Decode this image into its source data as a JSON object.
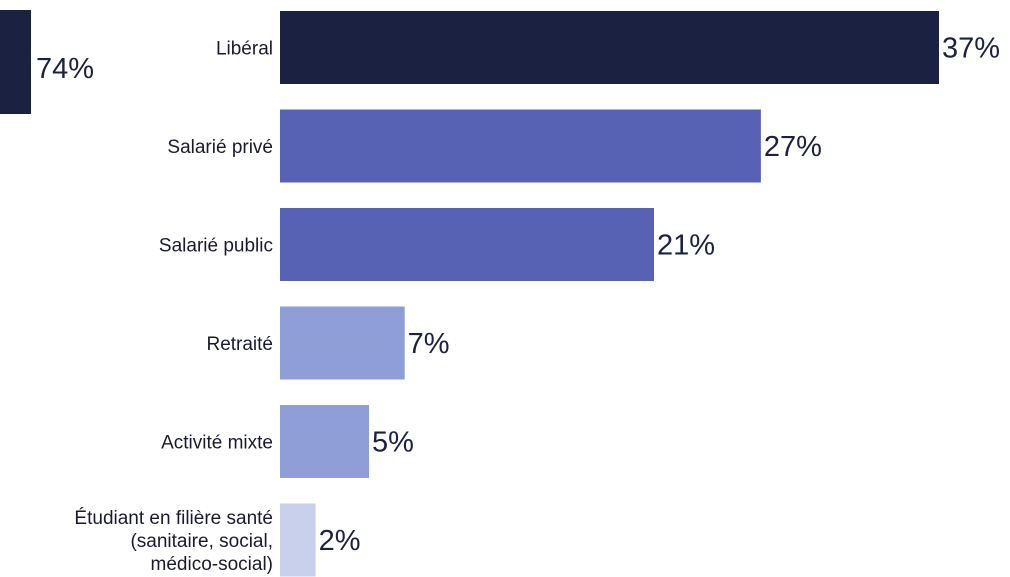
{
  "chart_data": [
    {
      "type": "bar",
      "orientation": "horizontal",
      "partial": true,
      "values": [
        74
      ],
      "value_labels": [
        "74%"
      ],
      "colors": [
        "#1b2140"
      ]
    },
    {
      "type": "bar",
      "orientation": "horizontal",
      "categories": [
        "Libéral",
        "Salarié privé",
        "Salarié public",
        "Retraité",
        "Activité mixte",
        "Étudiant en filière santé (sanitaire, social, médico-social)"
      ],
      "category_lines": [
        [
          "Libéral"
        ],
        [
          "Salarié privé"
        ],
        [
          "Salarié public"
        ],
        [
          "Retraité"
        ],
        [
          "Activité mixte"
        ],
        [
          "Étudiant en filière santé",
          "(sanitaire, social,",
          "médico-social)"
        ]
      ],
      "values": [
        37,
        27,
        21,
        7,
        5,
        2
      ],
      "value_labels": [
        "37%",
        "27%",
        "21%",
        "7%",
        "5%",
        "2%"
      ],
      "colors": [
        "#1b2140",
        "#5862b5",
        "#5862b5",
        "#8f9ed6",
        "#8f9ed6",
        "#c9d0ec"
      ],
      "xlim": [
        0,
        37
      ],
      "grid": false,
      "title": "",
      "xlabel": "",
      "ylabel": ""
    }
  ]
}
